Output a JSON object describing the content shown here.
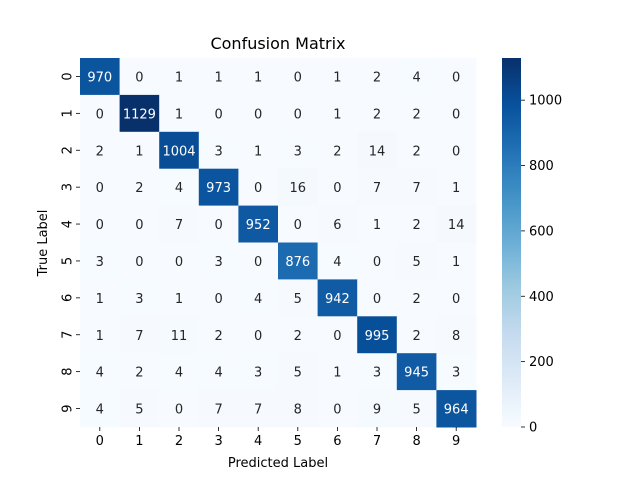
{
  "chart_data": {
    "type": "heatmap",
    "title": "Confusion Matrix",
    "xlabel": "Predicted Label",
    "ylabel": "True Label",
    "x_categories": [
      "0",
      "1",
      "2",
      "3",
      "4",
      "5",
      "6",
      "7",
      "8",
      "9"
    ],
    "y_categories": [
      "0",
      "1",
      "2",
      "3",
      "4",
      "5",
      "6",
      "7",
      "8",
      "9"
    ],
    "values": [
      [
        970,
        0,
        1,
        1,
        1,
        0,
        1,
        2,
        4,
        0
      ],
      [
        0,
        1129,
        1,
        0,
        0,
        0,
        1,
        2,
        2,
        0
      ],
      [
        2,
        1,
        1004,
        3,
        1,
        3,
        2,
        14,
        2,
        0
      ],
      [
        0,
        2,
        4,
        973,
        0,
        16,
        0,
        7,
        7,
        1
      ],
      [
        0,
        0,
        7,
        0,
        952,
        0,
        6,
        1,
        2,
        14
      ],
      [
        3,
        0,
        0,
        3,
        0,
        876,
        4,
        0,
        5,
        1
      ],
      [
        1,
        3,
        1,
        0,
        4,
        5,
        942,
        0,
        2,
        0
      ],
      [
        1,
        7,
        11,
        2,
        0,
        2,
        0,
        995,
        2,
        8
      ],
      [
        4,
        2,
        4,
        4,
        3,
        5,
        1,
        3,
        945,
        3
      ],
      [
        4,
        5,
        0,
        7,
        7,
        8,
        0,
        9,
        5,
        964
      ]
    ],
    "value_range": [
      0,
      1129
    ],
    "colormap": "Blues",
    "colorbar_ticks": [
      0,
      200,
      400,
      600,
      800,
      1000
    ],
    "colors": {
      "low": "#f7fbff",
      "high": "#08306b"
    }
  }
}
